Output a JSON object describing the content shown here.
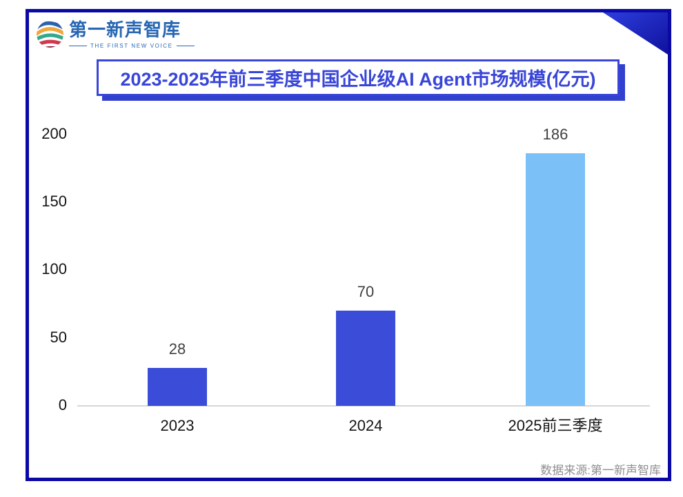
{
  "brand": {
    "logo_text": "第一新声智库",
    "tagline": "THE FIRST NEW VOICE"
  },
  "chart_data": {
    "type": "bar",
    "title": "2023-2025年前三季度中国企业级AI Agent市场规模(亿元)",
    "categories": [
      "2023",
      "2024",
      "2025前三季度"
    ],
    "values": [
      28,
      70,
      186
    ],
    "bar_colors": [
      "#3a4cd8",
      "#3a4cd8",
      "#7cc0f8"
    ],
    "yticks": [
      0,
      50,
      100,
      150,
      200
    ],
    "ylim": [
      0,
      200
    ],
    "xlabel": "",
    "ylabel": "",
    "grid": false,
    "legend": false
  },
  "source": "数据来源:第一新声智库",
  "colors": {
    "frame_border": "#0b09a5",
    "title_accent": "#3845d8",
    "title_shadow": "#3140ce",
    "bar_primary": "#3a4cd8",
    "bar_highlight": "#7cc0f8",
    "logo_blue": "#2766b2",
    "value_text": "#404040",
    "axis_text": "#141414",
    "source_text": "#8f8f8f"
  }
}
